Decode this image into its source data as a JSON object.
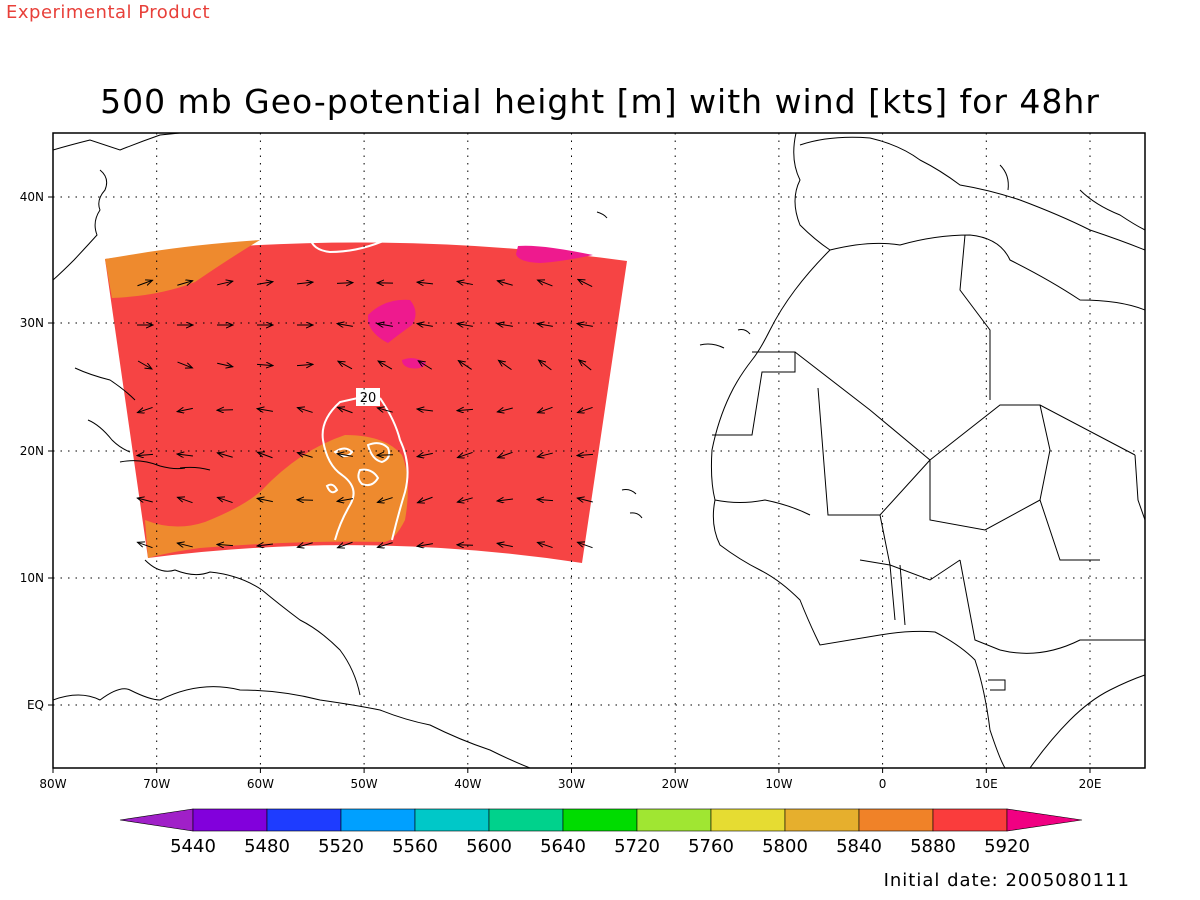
{
  "header": {
    "experimental_label": "Experimental Product"
  },
  "title": "500 mb Geo-potential height [m] with wind [kts] for 48hr",
  "map": {
    "lon_ticks": [
      "80W",
      "70W",
      "60W",
      "50W",
      "40W",
      "30W",
      "20W",
      "10W",
      "0",
      "10E",
      "20E"
    ],
    "lat_ticks": [
      "40N",
      "30N",
      "20N",
      "10N",
      "EQ"
    ],
    "contour_label": "20",
    "colors": {
      "field_main": "#f64444",
      "field_low": "#ee8a2e",
      "field_high": "#ee1a8e",
      "contour": "#ffffff",
      "coast": "#000000"
    }
  },
  "colorbar": {
    "labels": [
      "5440",
      "5480",
      "5520",
      "5560",
      "5600",
      "5640",
      "5720",
      "5760",
      "5800",
      "5840",
      "5880",
      "5920"
    ],
    "colors": [
      "#a020c8",
      "#8200dc",
      "#1e3cff",
      "#00a0ff",
      "#00c8c8",
      "#00d28c",
      "#00dc00",
      "#a0e632",
      "#e6dc32",
      "#e6af2d",
      "#f08228",
      "#fa3c3c",
      "#f00082"
    ]
  },
  "footer": {
    "initial_date": "Initial date: 2005080111"
  }
}
